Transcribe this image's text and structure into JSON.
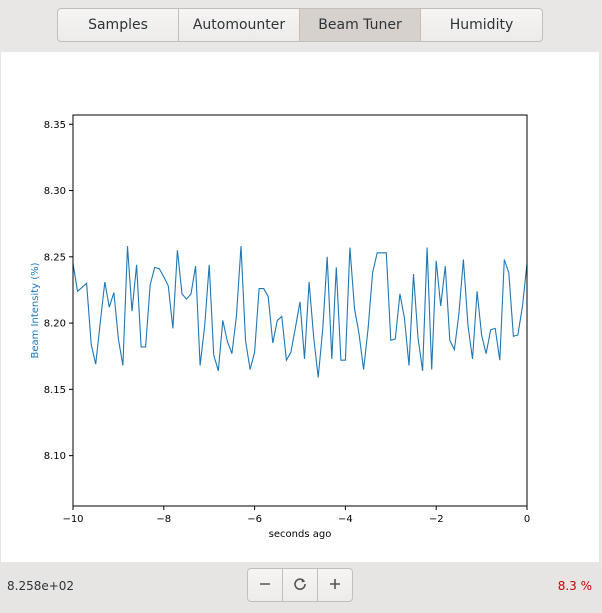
{
  "tabs": [
    {
      "label": "Samples"
    },
    {
      "label": "Automounter"
    },
    {
      "label": "Beam Tuner",
      "active": true
    },
    {
      "label": "Humidity"
    }
  ],
  "footer": {
    "readout": "8.258e+02",
    "percent": "8.3 %",
    "buttons": {
      "zoom_out_icon": "minus-icon",
      "reset_icon": "refresh-icon",
      "zoom_in_icon": "plus-icon"
    }
  },
  "colors": {
    "line": "#1f77b4",
    "ylabel": "#1f77b4",
    "percent": "#cc0000",
    "active_tab": "#d6d1cd"
  },
  "chart_data": {
    "type": "line",
    "xlabel": "seconds ago",
    "ylabel": "Beam Intensity (%)",
    "xlim": [
      -10,
      0
    ],
    "ylim": [
      8.062,
      8.357
    ],
    "x_ticks": [
      -10,
      -8,
      -6,
      -4,
      -2,
      0
    ],
    "x_tick_labels": [
      "−10",
      "−8",
      "−6",
      "−4",
      "−2",
      "0"
    ],
    "y_ticks": [
      8.1,
      8.15,
      8.2,
      8.25,
      8.3,
      8.35
    ],
    "y_tick_labels": [
      "8.10",
      "8.15",
      "8.20",
      "8.25",
      "8.30",
      "8.35"
    ],
    "grid": false,
    "series": [
      {
        "x": [
          -10.0,
          -9.9,
          -9.8,
          -9.7,
          -9.6,
          -9.5,
          -9.4,
          -9.3,
          -9.2,
          -9.1,
          -9.0,
          -8.9,
          -8.8,
          -8.7,
          -8.6,
          -8.5,
          -8.4,
          -8.3,
          -8.2,
          -8.1,
          -8.0,
          -7.9,
          -7.8,
          -7.7,
          -7.6,
          -7.5,
          -7.4,
          -7.3,
          -7.2,
          -7.1,
          -7.0,
          -6.9,
          -6.8,
          -6.7,
          -6.6,
          -6.5,
          -6.4,
          -6.3,
          -6.2,
          -6.1,
          -6.0,
          -5.9,
          -5.8,
          -5.7,
          -5.6,
          -5.5,
          -5.4,
          -5.3,
          -5.2,
          -5.1,
          -5.0,
          -4.9,
          -4.8,
          -4.7,
          -4.6,
          -4.5,
          -4.4,
          -4.3,
          -4.2,
          -4.1,
          -4.0,
          -3.9,
          -3.8,
          -3.7,
          -3.6,
          -3.5,
          -3.4,
          -3.3,
          -3.2,
          -3.1,
          -3.0,
          -2.9,
          -2.8,
          -2.7,
          -2.6,
          -2.5,
          -2.4,
          -2.3,
          -2.2,
          -2.1,
          -2.0,
          -1.9,
          -1.8,
          -1.7,
          -1.6,
          -1.5,
          -1.4,
          -1.3,
          -1.2,
          -1.1,
          -1.0,
          -0.9,
          -0.8,
          -0.7,
          -0.6,
          -0.5,
          -0.4,
          -0.3,
          -0.2,
          -0.1,
          0.0
        ],
        "y": [
          8.245,
          8.224,
          8.227,
          8.23,
          8.184,
          8.169,
          8.2,
          8.231,
          8.212,
          8.223,
          8.188,
          8.168,
          8.258,
          8.209,
          8.244,
          8.182,
          8.182,
          8.229,
          8.242,
          8.241,
          8.235,
          8.228,
          8.196,
          8.255,
          8.222,
          8.218,
          8.222,
          8.243,
          8.168,
          8.198,
          8.244,
          8.176,
          8.164,
          8.202,
          8.186,
          8.177,
          8.205,
          8.258,
          8.187,
          8.165,
          8.178,
          8.226,
          8.226,
          8.22,
          8.185,
          8.202,
          8.205,
          8.172,
          8.178,
          8.197,
          8.216,
          8.173,
          8.231,
          8.19,
          8.159,
          8.195,
          8.25,
          8.173,
          8.242,
          8.172,
          8.172,
          8.257,
          8.211,
          8.192,
          8.165,
          8.196,
          8.238,
          8.253,
          8.253,
          8.253,
          8.187,
          8.188,
          8.222,
          8.204,
          8.168,
          8.237,
          8.189,
          8.164,
          8.257,
          8.165,
          8.247,
          8.213,
          8.243,
          8.187,
          8.18,
          8.207,
          8.248,
          8.198,
          8.173,
          8.224,
          8.191,
          8.177,
          8.195,
          8.196,
          8.172,
          8.248,
          8.238,
          8.19,
          8.191,
          8.213,
          8.245
        ]
      }
    ]
  }
}
